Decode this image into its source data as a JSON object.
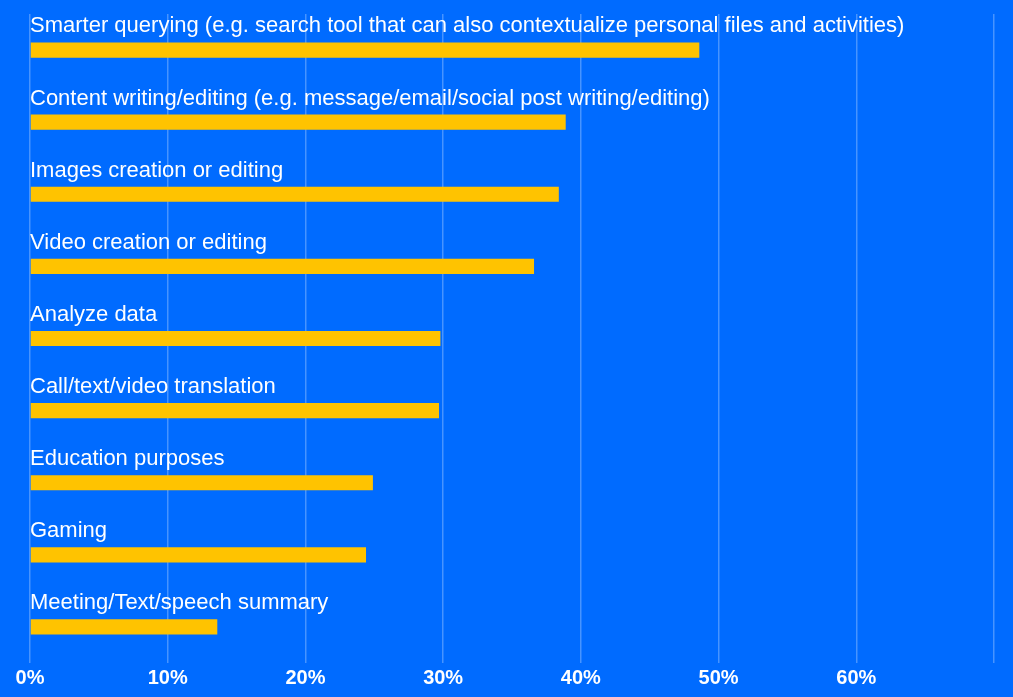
{
  "chart_data": {
    "type": "bar",
    "orientation": "horizontal",
    "categories": [
      "Smarter querying (e.g. search tool that can also contextualize personal files and activities)",
      "Content writing/editing (e.g. message/email/social post writing/editing)",
      "Images creation or editing",
      "Video creation or editing",
      "Analyze data",
      "Call/text/video translation",
      "Education purposes",
      "Gaming",
      "Meeting/Text/speech summary"
    ],
    "values": [
      48.6,
      38.9,
      38.4,
      36.6,
      29.8,
      29.7,
      24.9,
      24.4,
      13.6
    ],
    "color": "#ffc300",
    "xlim": [
      0,
      70
    ],
    "xticks": [
      {
        "value": 0,
        "label": "0%"
      },
      {
        "value": 10,
        "label": "10%"
      },
      {
        "value": 20,
        "label": "20%"
      },
      {
        "value": 30,
        "label": "30%"
      },
      {
        "value": 40,
        "label": "40%"
      },
      {
        "value": 50,
        "label": "50%"
      },
      {
        "value": 60,
        "label": "60%"
      },
      {
        "value": 70,
        "label": null
      }
    ],
    "grid": "x",
    "legend": false
  }
}
